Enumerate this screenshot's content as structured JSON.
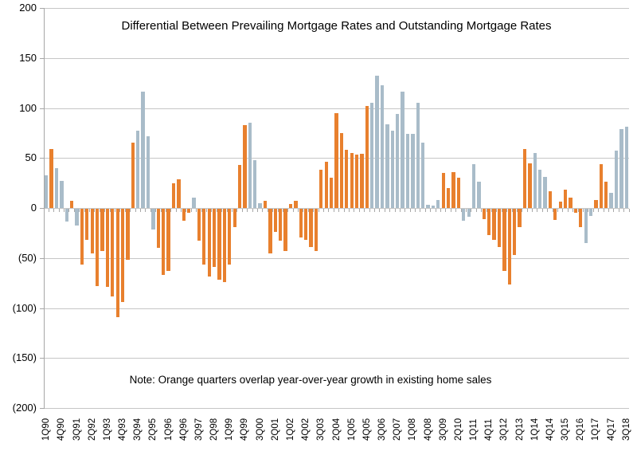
{
  "colors": {
    "orange": "#E8802E",
    "gray": "#A9BCC9",
    "gridline": "#C6C6C6",
    "axis": "#A6A6A6",
    "text": "#000000",
    "background": "#FFFFFF"
  },
  "chart_data": {
    "type": "bar",
    "title": "Differential Between Prevailing Mortgage Rates and Outstanding Mortgage Rates",
    "note": "Note: Orange quarters overlap year-over-year growth in existing home sales",
    "ylim": [
      -200,
      200
    ],
    "gridline_step": 50,
    "grid": true,
    "legend": "none",
    "y_tick_labels": [
      "200",
      "150",
      "100",
      "50",
      "0",
      "(50)",
      "(100)",
      "(150)",
      "(200)"
    ],
    "x_label_every": 3,
    "x_tick_labels": [
      "1Q90",
      "4Q90",
      "3Q91",
      "2Q92",
      "1Q93",
      "4Q93",
      "3Q94",
      "2Q95",
      "1Q96",
      "4Q96",
      "3Q97",
      "2Q98",
      "1Q99",
      "4Q99",
      "3Q00",
      "2Q01",
      "1Q02",
      "4Q02",
      "3Q03",
      "2Q04",
      "1Q05",
      "4Q05",
      "3Q06",
      "2Q07",
      "1Q08",
      "4Q08",
      "3Q09",
      "2Q10",
      "1Q11",
      "4Q11",
      "3Q12",
      "2Q13",
      "1Q14",
      "4Q14",
      "3Q15",
      "2Q16",
      "1Q17",
      "4Q17",
      "3Q18"
    ],
    "bars": [
      {
        "q": "1Q90",
        "v": 33,
        "c": "gray"
      },
      {
        "q": "2Q90",
        "v": 59,
        "c": "orange"
      },
      {
        "q": "3Q90",
        "v": 40,
        "c": "gray"
      },
      {
        "q": "4Q90",
        "v": 27,
        "c": "gray"
      },
      {
        "q": "1Q91",
        "v": -13,
        "c": "gray"
      },
      {
        "q": "2Q91",
        "v": 7,
        "c": "orange"
      },
      {
        "q": "3Q91",
        "v": -17,
        "c": "gray"
      },
      {
        "q": "4Q91",
        "v": -56,
        "c": "orange"
      },
      {
        "q": "1Q92",
        "v": -31,
        "c": "orange"
      },
      {
        "q": "2Q92",
        "v": -45,
        "c": "orange"
      },
      {
        "q": "3Q92",
        "v": -77,
        "c": "orange"
      },
      {
        "q": "4Q92",
        "v": -42,
        "c": "orange"
      },
      {
        "q": "1Q93",
        "v": -78,
        "c": "orange"
      },
      {
        "q": "2Q93",
        "v": -88,
        "c": "orange"
      },
      {
        "q": "3Q93",
        "v": -108,
        "c": "orange"
      },
      {
        "q": "4Q93",
        "v": -93,
        "c": "orange"
      },
      {
        "q": "1Q94",
        "v": -51,
        "c": "orange"
      },
      {
        "q": "2Q94",
        "v": 65,
        "c": "orange"
      },
      {
        "q": "3Q94",
        "v": 77,
        "c": "gray"
      },
      {
        "q": "4Q94",
        "v": 116,
        "c": "gray"
      },
      {
        "q": "1Q95",
        "v": 72,
        "c": "gray"
      },
      {
        "q": "2Q95",
        "v": -21,
        "c": "gray"
      },
      {
        "q": "3Q95",
        "v": -39,
        "c": "orange"
      },
      {
        "q": "4Q95",
        "v": -66,
        "c": "orange"
      },
      {
        "q": "1Q96",
        "v": -62,
        "c": "orange"
      },
      {
        "q": "2Q96",
        "v": 25,
        "c": "orange"
      },
      {
        "q": "3Q96",
        "v": 29,
        "c": "orange"
      },
      {
        "q": "4Q96",
        "v": -12,
        "c": "orange"
      },
      {
        "q": "1Q97",
        "v": -4,
        "c": "orange"
      },
      {
        "q": "2Q97",
        "v": 10,
        "c": "gray"
      },
      {
        "q": "3Q97",
        "v": -32,
        "c": "orange"
      },
      {
        "q": "4Q97",
        "v": -56,
        "c": "orange"
      },
      {
        "q": "1Q98",
        "v": -68,
        "c": "orange"
      },
      {
        "q": "2Q98",
        "v": -58,
        "c": "orange"
      },
      {
        "q": "3Q98",
        "v": -71,
        "c": "orange"
      },
      {
        "q": "4Q98",
        "v": -73,
        "c": "orange"
      },
      {
        "q": "1Q99",
        "v": -56,
        "c": "orange"
      },
      {
        "q": "2Q99",
        "v": -18,
        "c": "orange"
      },
      {
        "q": "3Q99",
        "v": 43,
        "c": "orange"
      },
      {
        "q": "4Q99",
        "v": 83,
        "c": "orange"
      },
      {
        "q": "1Q00",
        "v": 85,
        "c": "gray"
      },
      {
        "q": "2Q00",
        "v": 48,
        "c": "gray"
      },
      {
        "q": "3Q00",
        "v": 5,
        "c": "gray"
      },
      {
        "q": "4Q00",
        "v": 7,
        "c": "orange"
      },
      {
        "q": "1Q01",
        "v": -45,
        "c": "orange"
      },
      {
        "q": "2Q01",
        "v": -23,
        "c": "orange"
      },
      {
        "q": "3Q01",
        "v": -32,
        "c": "orange"
      },
      {
        "q": "4Q01",
        "v": -42,
        "c": "orange"
      },
      {
        "q": "1Q02",
        "v": 4,
        "c": "orange"
      },
      {
        "q": "2Q02",
        "v": 7,
        "c": "orange"
      },
      {
        "q": "3Q02",
        "v": -29,
        "c": "orange"
      },
      {
        "q": "4Q02",
        "v": -31,
        "c": "orange"
      },
      {
        "q": "1Q03",
        "v": -38,
        "c": "orange"
      },
      {
        "q": "2Q03",
        "v": -42,
        "c": "orange"
      },
      {
        "q": "3Q03",
        "v": 38,
        "c": "orange"
      },
      {
        "q": "4Q03",
        "v": 46,
        "c": "orange"
      },
      {
        "q": "1Q04",
        "v": 30,
        "c": "orange"
      },
      {
        "q": "2Q04",
        "v": 95,
        "c": "orange"
      },
      {
        "q": "3Q04",
        "v": 75,
        "c": "orange"
      },
      {
        "q": "4Q04",
        "v": 58,
        "c": "orange"
      },
      {
        "q": "1Q05",
        "v": 55,
        "c": "orange"
      },
      {
        "q": "2Q05",
        "v": 53,
        "c": "orange"
      },
      {
        "q": "3Q05",
        "v": 54,
        "c": "orange"
      },
      {
        "q": "4Q05",
        "v": 102,
        "c": "orange"
      },
      {
        "q": "1Q06",
        "v": 105,
        "c": "gray"
      },
      {
        "q": "2Q06",
        "v": 132,
        "c": "gray"
      },
      {
        "q": "3Q06",
        "v": 123,
        "c": "gray"
      },
      {
        "q": "4Q06",
        "v": 84,
        "c": "gray"
      },
      {
        "q": "1Q07",
        "v": 77,
        "c": "gray"
      },
      {
        "q": "2Q07",
        "v": 94,
        "c": "gray"
      },
      {
        "q": "3Q07",
        "v": 116,
        "c": "gray"
      },
      {
        "q": "4Q07",
        "v": 74,
        "c": "gray"
      },
      {
        "q": "1Q08",
        "v": 74,
        "c": "gray"
      },
      {
        "q": "2Q08",
        "v": 105,
        "c": "gray"
      },
      {
        "q": "3Q08",
        "v": 65,
        "c": "gray"
      },
      {
        "q": "4Q08",
        "v": 3,
        "c": "gray"
      },
      {
        "q": "1Q09",
        "v": 2,
        "c": "gray"
      },
      {
        "q": "2Q09",
        "v": 8,
        "c": "gray"
      },
      {
        "q": "3Q09",
        "v": 35,
        "c": "orange"
      },
      {
        "q": "4Q09",
        "v": 20,
        "c": "orange"
      },
      {
        "q": "1Q10",
        "v": 36,
        "c": "orange"
      },
      {
        "q": "2Q10",
        "v": 30,
        "c": "orange"
      },
      {
        "q": "3Q10",
        "v": -12,
        "c": "gray"
      },
      {
        "q": "4Q10",
        "v": -8,
        "c": "gray"
      },
      {
        "q": "1Q11",
        "v": 44,
        "c": "gray"
      },
      {
        "q": "2Q11",
        "v": 26,
        "c": "gray"
      },
      {
        "q": "3Q11",
        "v": -10,
        "c": "orange"
      },
      {
        "q": "4Q11",
        "v": -26,
        "c": "orange"
      },
      {
        "q": "1Q12",
        "v": -31,
        "c": "orange"
      },
      {
        "q": "2Q12",
        "v": -38,
        "c": "orange"
      },
      {
        "q": "3Q12",
        "v": -62,
        "c": "orange"
      },
      {
        "q": "4Q12",
        "v": -76,
        "c": "orange"
      },
      {
        "q": "1Q13",
        "v": -46,
        "c": "orange"
      },
      {
        "q": "2Q13",
        "v": -18,
        "c": "orange"
      },
      {
        "q": "3Q13",
        "v": 59,
        "c": "orange"
      },
      {
        "q": "4Q13",
        "v": 45,
        "c": "orange"
      },
      {
        "q": "1Q14",
        "v": 55,
        "c": "gray"
      },
      {
        "q": "2Q14",
        "v": 38,
        "c": "gray"
      },
      {
        "q": "3Q14",
        "v": 31,
        "c": "gray"
      },
      {
        "q": "4Q14",
        "v": 17,
        "c": "orange"
      },
      {
        "q": "1Q15",
        "v": -11,
        "c": "orange"
      },
      {
        "q": "2Q15",
        "v": 6,
        "c": "orange"
      },
      {
        "q": "3Q15",
        "v": 18,
        "c": "orange"
      },
      {
        "q": "4Q15",
        "v": 10,
        "c": "orange"
      },
      {
        "q": "1Q16",
        "v": -4,
        "c": "orange"
      },
      {
        "q": "2Q16",
        "v": -18,
        "c": "orange"
      },
      {
        "q": "3Q16",
        "v": -34,
        "c": "gray"
      },
      {
        "q": "4Q16",
        "v": -7,
        "c": "gray"
      },
      {
        "q": "1Q17",
        "v": 8,
        "c": "orange"
      },
      {
        "q": "2Q17",
        "v": 44,
        "c": "orange"
      },
      {
        "q": "3Q17",
        "v": 26,
        "c": "orange"
      },
      {
        "q": "4Q17",
        "v": 15,
        "c": "gray"
      },
      {
        "q": "1Q18",
        "v": 57,
        "c": "gray"
      },
      {
        "q": "2Q18",
        "v": 79,
        "c": "gray"
      },
      {
        "q": "3Q18",
        "v": 81,
        "c": "gray"
      }
    ]
  }
}
